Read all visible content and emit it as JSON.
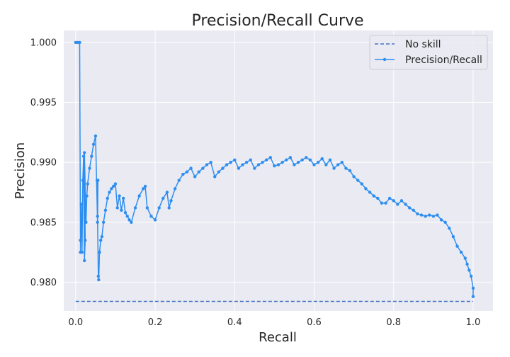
{
  "chart_data": {
    "type": "line",
    "title": "Precision/Recall Curve",
    "xlabel": "Recall",
    "ylabel": "Precision",
    "xlim": [
      -0.03,
      1.05
    ],
    "ylim": [
      0.9776,
      1.001
    ],
    "xticks": [
      "0.0",
      "0.2",
      "0.4",
      "0.6",
      "0.8",
      "1.0"
    ],
    "yticks": [
      "0.980",
      "0.985",
      "0.990",
      "0.995",
      "1.000"
    ],
    "grid": true,
    "legend_position": "top-right",
    "series": [
      {
        "name": "No skill",
        "style": "dashed",
        "color": "#4472c4",
        "x": [
          0.0,
          1.0
        ],
        "y": [
          0.9784,
          0.9784
        ]
      },
      {
        "name": "Precision/Recall",
        "style": "solid-with-markers",
        "color": "#2e8ef0",
        "x": [
          0.0,
          0.005,
          0.01,
          0.012,
          0.012,
          0.014,
          0.016,
          0.018,
          0.02,
          0.022,
          0.024,
          0.022,
          0.026,
          0.028,
          0.03,
          0.035,
          0.04,
          0.045,
          0.05,
          0.055,
          0.056,
          0.054,
          0.055,
          0.057,
          0.058,
          0.06,
          0.063,
          0.066,
          0.07,
          0.075,
          0.08,
          0.085,
          0.09,
          0.095,
          0.1,
          0.105,
          0.11,
          0.115,
          0.12,
          0.125,
          0.13,
          0.135,
          0.14,
          0.15,
          0.16,
          0.17,
          0.175,
          0.18,
          0.19,
          0.2,
          0.21,
          0.22,
          0.23,
          0.235,
          0.24,
          0.25,
          0.26,
          0.27,
          0.28,
          0.29,
          0.3,
          0.31,
          0.32,
          0.33,
          0.34,
          0.35,
          0.36,
          0.37,
          0.38,
          0.39,
          0.4,
          0.41,
          0.42,
          0.43,
          0.44,
          0.45,
          0.46,
          0.47,
          0.48,
          0.49,
          0.5,
          0.51,
          0.52,
          0.53,
          0.54,
          0.55,
          0.56,
          0.57,
          0.58,
          0.59,
          0.6,
          0.61,
          0.62,
          0.63,
          0.64,
          0.65,
          0.66,
          0.67,
          0.68,
          0.69,
          0.7,
          0.71,
          0.72,
          0.73,
          0.74,
          0.75,
          0.76,
          0.77,
          0.78,
          0.79,
          0.8,
          0.81,
          0.82,
          0.83,
          0.84,
          0.85,
          0.86,
          0.87,
          0.88,
          0.89,
          0.9,
          0.91,
          0.92,
          0.93,
          0.94,
          0.95,
          0.96,
          0.97,
          0.98,
          0.985,
          0.99,
          0.995,
          1.0,
          1.0
        ],
        "y": [
          1.0,
          1.0,
          1.0,
          0.9835,
          0.9825,
          0.9865,
          0.9825,
          0.9885,
          0.9905,
          0.9818,
          0.9835,
          0.9908,
          0.985,
          0.9872,
          0.9882,
          0.9895,
          0.9905,
          0.9915,
          0.9922,
          0.985,
          0.9885,
          0.9885,
          0.9855,
          0.9805,
          0.9802,
          0.9825,
          0.9835,
          0.9838,
          0.985,
          0.986,
          0.987,
          0.9875,
          0.9878,
          0.988,
          0.9882,
          0.9862,
          0.9872,
          0.986,
          0.987,
          0.9858,
          0.9855,
          0.9852,
          0.985,
          0.9862,
          0.9872,
          0.9878,
          0.988,
          0.9862,
          0.9855,
          0.9852,
          0.9862,
          0.987,
          0.9875,
          0.9862,
          0.9868,
          0.9878,
          0.9885,
          0.989,
          0.9892,
          0.9895,
          0.9888,
          0.9892,
          0.9895,
          0.9898,
          0.99,
          0.9888,
          0.9892,
          0.9895,
          0.9898,
          0.99,
          0.9902,
          0.9895,
          0.9898,
          0.99,
          0.9902,
          0.9895,
          0.9898,
          0.99,
          0.9902,
          0.9904,
          0.9897,
          0.9898,
          0.99,
          0.9902,
          0.9904,
          0.9898,
          0.99,
          0.9902,
          0.9904,
          0.9902,
          0.9898,
          0.99,
          0.9903,
          0.9898,
          0.9902,
          0.9895,
          0.9898,
          0.99,
          0.9895,
          0.9893,
          0.9888,
          0.9885,
          0.9882,
          0.9878,
          0.9875,
          0.9872,
          0.987,
          0.9866,
          0.9866,
          0.987,
          0.9868,
          0.9865,
          0.9868,
          0.9865,
          0.9862,
          0.986,
          0.9857,
          0.9856,
          0.9855,
          0.9856,
          0.9855,
          0.9856,
          0.9852,
          0.985,
          0.9845,
          0.9838,
          0.983,
          0.9825,
          0.982,
          0.9815,
          0.981,
          0.9805,
          0.9795,
          0.9788
        ]
      }
    ]
  }
}
